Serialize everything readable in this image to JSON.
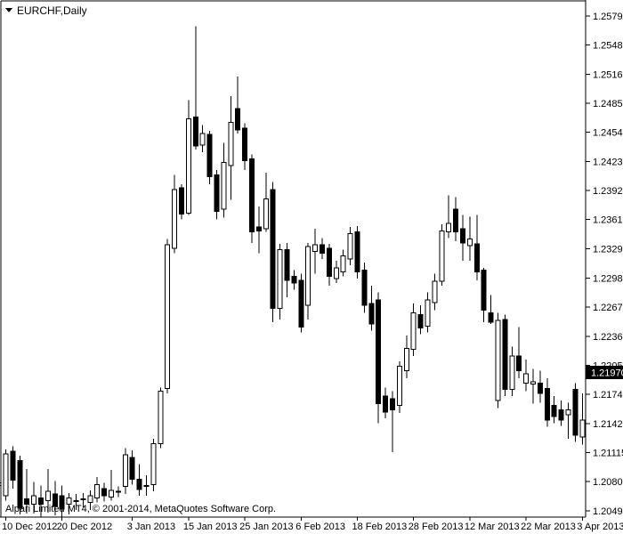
{
  "window": {
    "symbol_label": "EURCHF,Daily",
    "copyright": "Alpari Limited MT4, © 2001-2014, MetaQuotes Software Corp.",
    "dropdown_icon": "triangle-down"
  },
  "chart_data": {
    "type": "candlestick",
    "symbol": "EURCHF",
    "timeframe": "Daily",
    "title": "EURCHF,Daily",
    "current_price": "1.21970",
    "grid": "off",
    "legend_position": "none",
    "ylim": [
      1.2049,
      1.2579
    ],
    "price_axis_ticks": [
      "1.25790",
      "1.25480",
      "1.25165",
      "1.24855",
      "1.24545",
      "1.24230",
      "1.23920",
      "1.23610",
      "1.23295",
      "1.22985",
      "1.22675",
      "1.22360",
      "1.22050",
      "1.21740",
      "1.21425",
      "1.21115",
      "1.20805",
      "1.20490"
    ],
    "date_axis_ticks": [
      {
        "label": "10 Dec 2012",
        "candle_index": 0
      },
      {
        "label": "20 Dec 2012",
        "candle_index": 8
      },
      {
        "label": "3 Jan 2013",
        "candle_index": 18
      },
      {
        "label": "15 Jan 2013",
        "candle_index": 26
      },
      {
        "label": "25 Jan 2013",
        "candle_index": 34
      },
      {
        "label": "6 Feb 2013",
        "candle_index": 42
      },
      {
        "label": "18 Feb 2013",
        "candle_index": 50
      },
      {
        "label": "28 Feb 2013",
        "candle_index": 58
      },
      {
        "label": "12 Mar 2013",
        "candle_index": 66
      },
      {
        "label": "22 Mar 2013",
        "candle_index": 74
      },
      {
        "label": "3 Apr 2013",
        "candle_index": 82
      }
    ],
    "partial_left_candle": {
      "open": 1.2076,
      "high": 1.2087,
      "low": 1.2066,
      "close": 1.2079
    },
    "candle_format": [
      "date",
      "open",
      "high",
      "low",
      "close"
    ],
    "candles": [
      [
        "10 Dec 2012",
        1.2065,
        1.2115,
        1.206,
        1.211
      ],
      [
        "11 Dec 2012",
        1.2113,
        1.2118,
        1.2073,
        1.2082
      ],
      [
        "12 Dec 2012",
        1.2103,
        1.2108,
        1.2045,
        1.2052
      ],
      [
        "13 Dec 2012",
        1.2062,
        1.2094,
        1.2046,
        1.2056
      ],
      [
        "14 Dec 2012",
        1.2056,
        1.208,
        1.2046,
        1.2065
      ],
      [
        "17 Dec 2012",
        1.2063,
        1.2076,
        1.2042,
        1.2056
      ],
      [
        "18 Dec 2012",
        1.206,
        1.2094,
        1.2047,
        1.207
      ],
      [
        "19 Dec 2012",
        1.2067,
        1.2081,
        1.2044,
        1.2054
      ],
      [
        "20 Dec 2012",
        1.2065,
        1.2076,
        1.2042,
        1.2051
      ],
      [
        "21 Dec 2012",
        1.2056,
        1.2068,
        1.2045,
        1.2063
      ],
      [
        "24 Dec 2012",
        1.2059,
        1.2067,
        1.205,
        1.206
      ],
      [
        "25 Dec 2012",
        1.2061,
        1.2068,
        1.2053,
        1.2062
      ],
      [
        "26 Dec 2012",
        1.2058,
        1.2071,
        1.205,
        1.2065
      ],
      [
        "27 Dec 2012",
        1.2063,
        1.2085,
        1.2058,
        1.2077
      ],
      [
        "28 Dec 2012",
        1.2073,
        1.2079,
        1.2059,
        1.2065
      ],
      [
        "31 Dec 2012",
        1.2064,
        1.2093,
        1.206,
        1.2071
      ],
      [
        "1 Jan 2013",
        1.2069,
        1.2075,
        1.2064,
        1.207
      ],
      [
        "2 Jan 2013",
        1.2075,
        1.2116,
        1.2067,
        1.2109
      ],
      [
        "3 Jan 2013",
        1.2106,
        1.2114,
        1.2077,
        1.2083
      ],
      [
        "4 Jan 2013",
        1.2083,
        1.2099,
        1.2065,
        1.2072
      ],
      [
        "7 Jan 2013",
        1.2075,
        1.2087,
        1.2065,
        1.2076
      ],
      [
        "8 Jan 2013",
        1.2077,
        1.2126,
        1.207,
        1.2121
      ],
      [
        "9 Jan 2013",
        1.2121,
        1.2181,
        1.2116,
        1.2177
      ],
      [
        "10 Jan 2013",
        1.218,
        1.234,
        1.2175,
        1.2334
      ],
      [
        "11 Jan 2013",
        1.233,
        1.2409,
        1.2325,
        1.2393
      ],
      [
        "14 Jan 2013",
        1.2395,
        1.2399,
        1.2361,
        1.2367
      ],
      [
        "15 Jan 2013",
        1.2368,
        1.2489,
        1.2366,
        1.2469
      ],
      [
        "16 Jan 2013",
        1.2471,
        1.2568,
        1.2436,
        1.244
      ],
      [
        "17 Jan 2013",
        1.2441,
        1.2462,
        1.2433,
        1.2453
      ],
      [
        "18 Jan 2013",
        1.2452,
        1.2456,
        1.2399,
        1.2407
      ],
      [
        "21 Jan 2013",
        1.2409,
        1.2414,
        1.2361,
        1.237
      ],
      [
        "22 Jan 2013",
        1.2372,
        1.2443,
        1.2363,
        1.2422
      ],
      [
        "23 Jan 2013",
        1.2419,
        1.2493,
        1.2382,
        1.2465
      ],
      [
        "24 Jan 2013",
        1.248,
        1.2514,
        1.2453,
        1.2457
      ],
      [
        "25 Jan 2013",
        1.2459,
        1.2464,
        1.2414,
        1.2424
      ],
      [
        "28 Jan 2013",
        1.2426,
        1.2431,
        1.2336,
        1.2348
      ],
      [
        "29 Jan 2013",
        1.2353,
        1.2375,
        1.2325,
        1.2349
      ],
      [
        "30 Jan 2013",
        1.2351,
        1.2411,
        1.2348,
        1.2383
      ],
      [
        "31 Jan 2013",
        1.2393,
        1.2401,
        1.2251,
        1.2266
      ],
      [
        "1 Feb 2013",
        1.2266,
        1.2335,
        1.2254,
        1.2329
      ],
      [
        "4 Feb 2013",
        1.2329,
        1.2336,
        1.2278,
        1.2296
      ],
      [
        "5 Feb 2013",
        1.23,
        1.2307,
        1.2286,
        1.2293
      ],
      [
        "6 Feb 2013",
        1.2296,
        1.2303,
        1.224,
        1.2246
      ],
      [
        "7 Feb 2013",
        1.2269,
        1.2336,
        1.2254,
        1.2332
      ],
      [
        "8 Feb 2013",
        1.2327,
        1.2351,
        1.2303,
        1.2334
      ],
      [
        "11 Feb 2013",
        1.2334,
        1.2341,
        1.2319,
        1.2325
      ],
      [
        "12 Feb 2013",
        1.233,
        1.2335,
        1.229,
        1.23
      ],
      [
        "13 Feb 2013",
        1.2298,
        1.2317,
        1.2293,
        1.2309
      ],
      [
        "14 Feb 2013",
        1.2305,
        1.2329,
        1.23,
        1.2322
      ],
      [
        "15 Feb 2013",
        1.2319,
        1.2353,
        1.2312,
        1.2346
      ],
      [
        "18 Feb 2013",
        1.2348,
        1.2354,
        1.2298,
        1.2305
      ],
      [
        "19 Feb 2013",
        1.2307,
        1.2315,
        1.2261,
        1.2269
      ],
      [
        "20 Feb 2013",
        1.2271,
        1.229,
        1.2242,
        1.2249
      ],
      [
        "21 Feb 2013",
        1.2275,
        1.2283,
        1.2143,
        1.2164
      ],
      [
        "22 Feb 2013",
        1.2172,
        1.2181,
        1.2148,
        1.2155
      ],
      [
        "25 Feb 2013",
        1.2169,
        1.2177,
        1.2112,
        1.2157
      ],
      [
        "26 Feb 2013",
        1.2162,
        1.2209,
        1.2154,
        1.2204
      ],
      [
        "27 Feb 2013",
        1.2199,
        1.2237,
        1.2191,
        1.2223
      ],
      [
        "28 Feb 2013",
        1.2222,
        1.2271,
        1.2215,
        1.2261
      ],
      [
        "1 Mar 2013",
        1.2259,
        1.2269,
        1.2238,
        1.2245
      ],
      [
        "4 Mar 2013",
        1.2247,
        1.2283,
        1.224,
        1.2275
      ],
      [
        "5 Mar 2013",
        1.2272,
        1.2303,
        1.2264,
        1.2295
      ],
      [
        "6 Mar 2013",
        1.2295,
        1.2356,
        1.229,
        1.2349
      ],
      [
        "7 Mar 2013",
        1.2348,
        1.2387,
        1.2341,
        1.2357
      ],
      [
        "8 Mar 2013",
        1.2372,
        1.2385,
        1.2338,
        1.2348
      ],
      [
        "11 Mar 2013",
        1.2351,
        1.2366,
        1.2317,
        1.2336
      ],
      [
        "12 Mar 2013",
        1.2333,
        1.2364,
        1.2317,
        1.234
      ],
      [
        "13 Mar 2013",
        1.2335,
        1.2366,
        1.2296,
        1.2305
      ],
      [
        "14 Mar 2013",
        1.2307,
        1.2309,
        1.2251,
        1.2264
      ],
      [
        "15 Mar 2013",
        1.2261,
        1.228,
        1.2249,
        1.2251
      ],
      [
        "18 Mar 2013",
        1.2167,
        1.2261,
        1.2159,
        1.2253
      ],
      [
        "19 Mar 2013",
        1.2254,
        1.2259,
        1.2172,
        1.2179
      ],
      [
        "20 Mar 2013",
        1.2179,
        1.2225,
        1.2172,
        1.2215
      ],
      [
        "21 Mar 2013",
        1.2215,
        1.2246,
        1.2191,
        1.2199
      ],
      [
        "22 Mar 2013",
        1.2186,
        1.2211,
        1.2177,
        1.2196
      ],
      [
        "25 Mar 2013",
        1.2185,
        1.2201,
        1.2164,
        1.2187
      ],
      [
        "26 Mar 2013",
        1.2186,
        1.2199,
        1.2165,
        1.2175
      ],
      [
        "27 Mar 2013",
        1.218,
        1.2191,
        1.2139,
        1.2146
      ],
      [
        "28 Mar 2013",
        1.2162,
        1.2172,
        1.2143,
        1.215
      ],
      [
        "29 Mar 2013",
        1.2157,
        1.2167,
        1.214,
        1.2146
      ],
      [
        "1 Apr 2013",
        1.2152,
        1.2165,
        1.2126,
        1.2157
      ],
      [
        "2 Apr 2013",
        1.2179,
        1.2186,
        1.2123,
        1.213
      ],
      [
        "3 Apr 2013",
        1.2128,
        1.2175,
        1.212,
        1.2146
      ]
    ],
    "colors": {
      "background": "#ffffff",
      "candle_bull_fill": "#ffffff",
      "candle_bear_fill": "#000000",
      "candle_outline": "#000000",
      "axis_line": "#000000",
      "axis_text": "#000000",
      "price_marker_bg": "#000000",
      "price_marker_text": "#ffffff"
    }
  }
}
